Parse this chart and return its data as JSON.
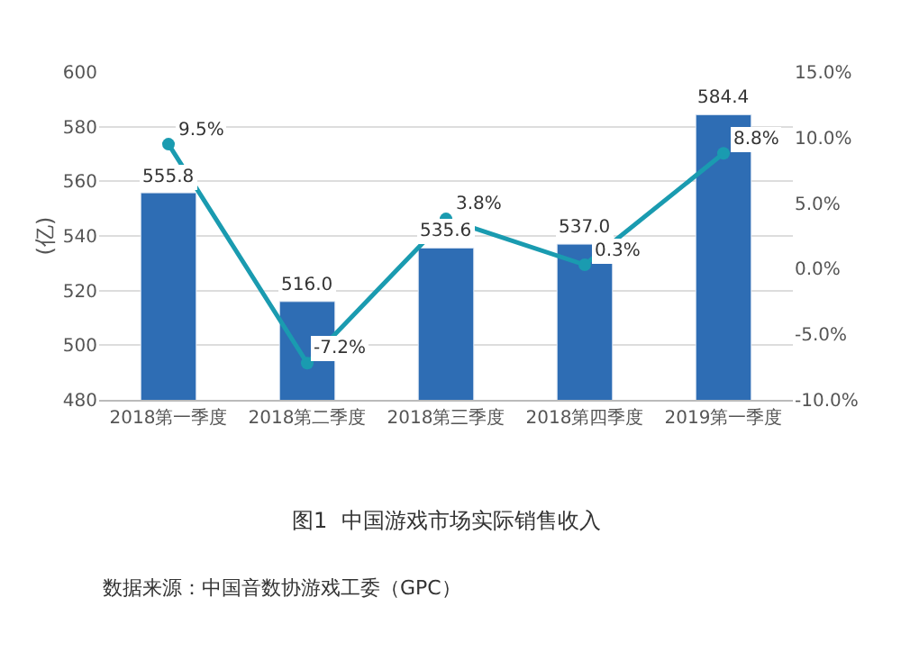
{
  "chart_data": {
    "type": "bar",
    "title": "图1  中国游戏市场实际销售收入",
    "categories": [
      "2018第一季度",
      "2018第二季度",
      "2018第三季度",
      "2018第四季度",
      "2019第一季度"
    ],
    "series": [
      {
        "color": "#2e6db4",
        "values": [
          555.8,
          516.0,
          535.6,
          537.0,
          584.4
        ],
        "value_labels": [
          "555.8",
          "516.0",
          "535.6",
          "537.0",
          "584.4"
        ]
      },
      {
        "type": "line",
        "axis": "y2",
        "color": "#1a9bb0",
        "marker": "circle",
        "values": [
          9.5,
          -7.2,
          3.8,
          0.3,
          8.8
        ],
        "value_labels": [
          "9.5%",
          "-7.2%",
          "3.8%",
          "0.3%",
          "8.8%"
        ]
      }
    ],
    "ylabel": "(亿)",
    "ylim": [
      480,
      600
    ],
    "yticks": [
      480,
      500,
      520,
      540,
      560,
      580,
      600
    ],
    "y2lim": [
      -10,
      15
    ],
    "y2ticks": [
      {
        "value": -10,
        "label": "-10.0%"
      },
      {
        "value": -5,
        "label": "-5.0%"
      },
      {
        "value": 0,
        "label": "0.0%"
      },
      {
        "value": 5,
        "label": "5.0%"
      },
      {
        "value": 10,
        "label": "10.0%"
      },
      {
        "value": 15,
        "label": "15.0%"
      }
    ],
    "grid": "y",
    "legend": false,
    "annotations": [
      "数据来源：中国音数协游戏工委（GPC）"
    ]
  }
}
